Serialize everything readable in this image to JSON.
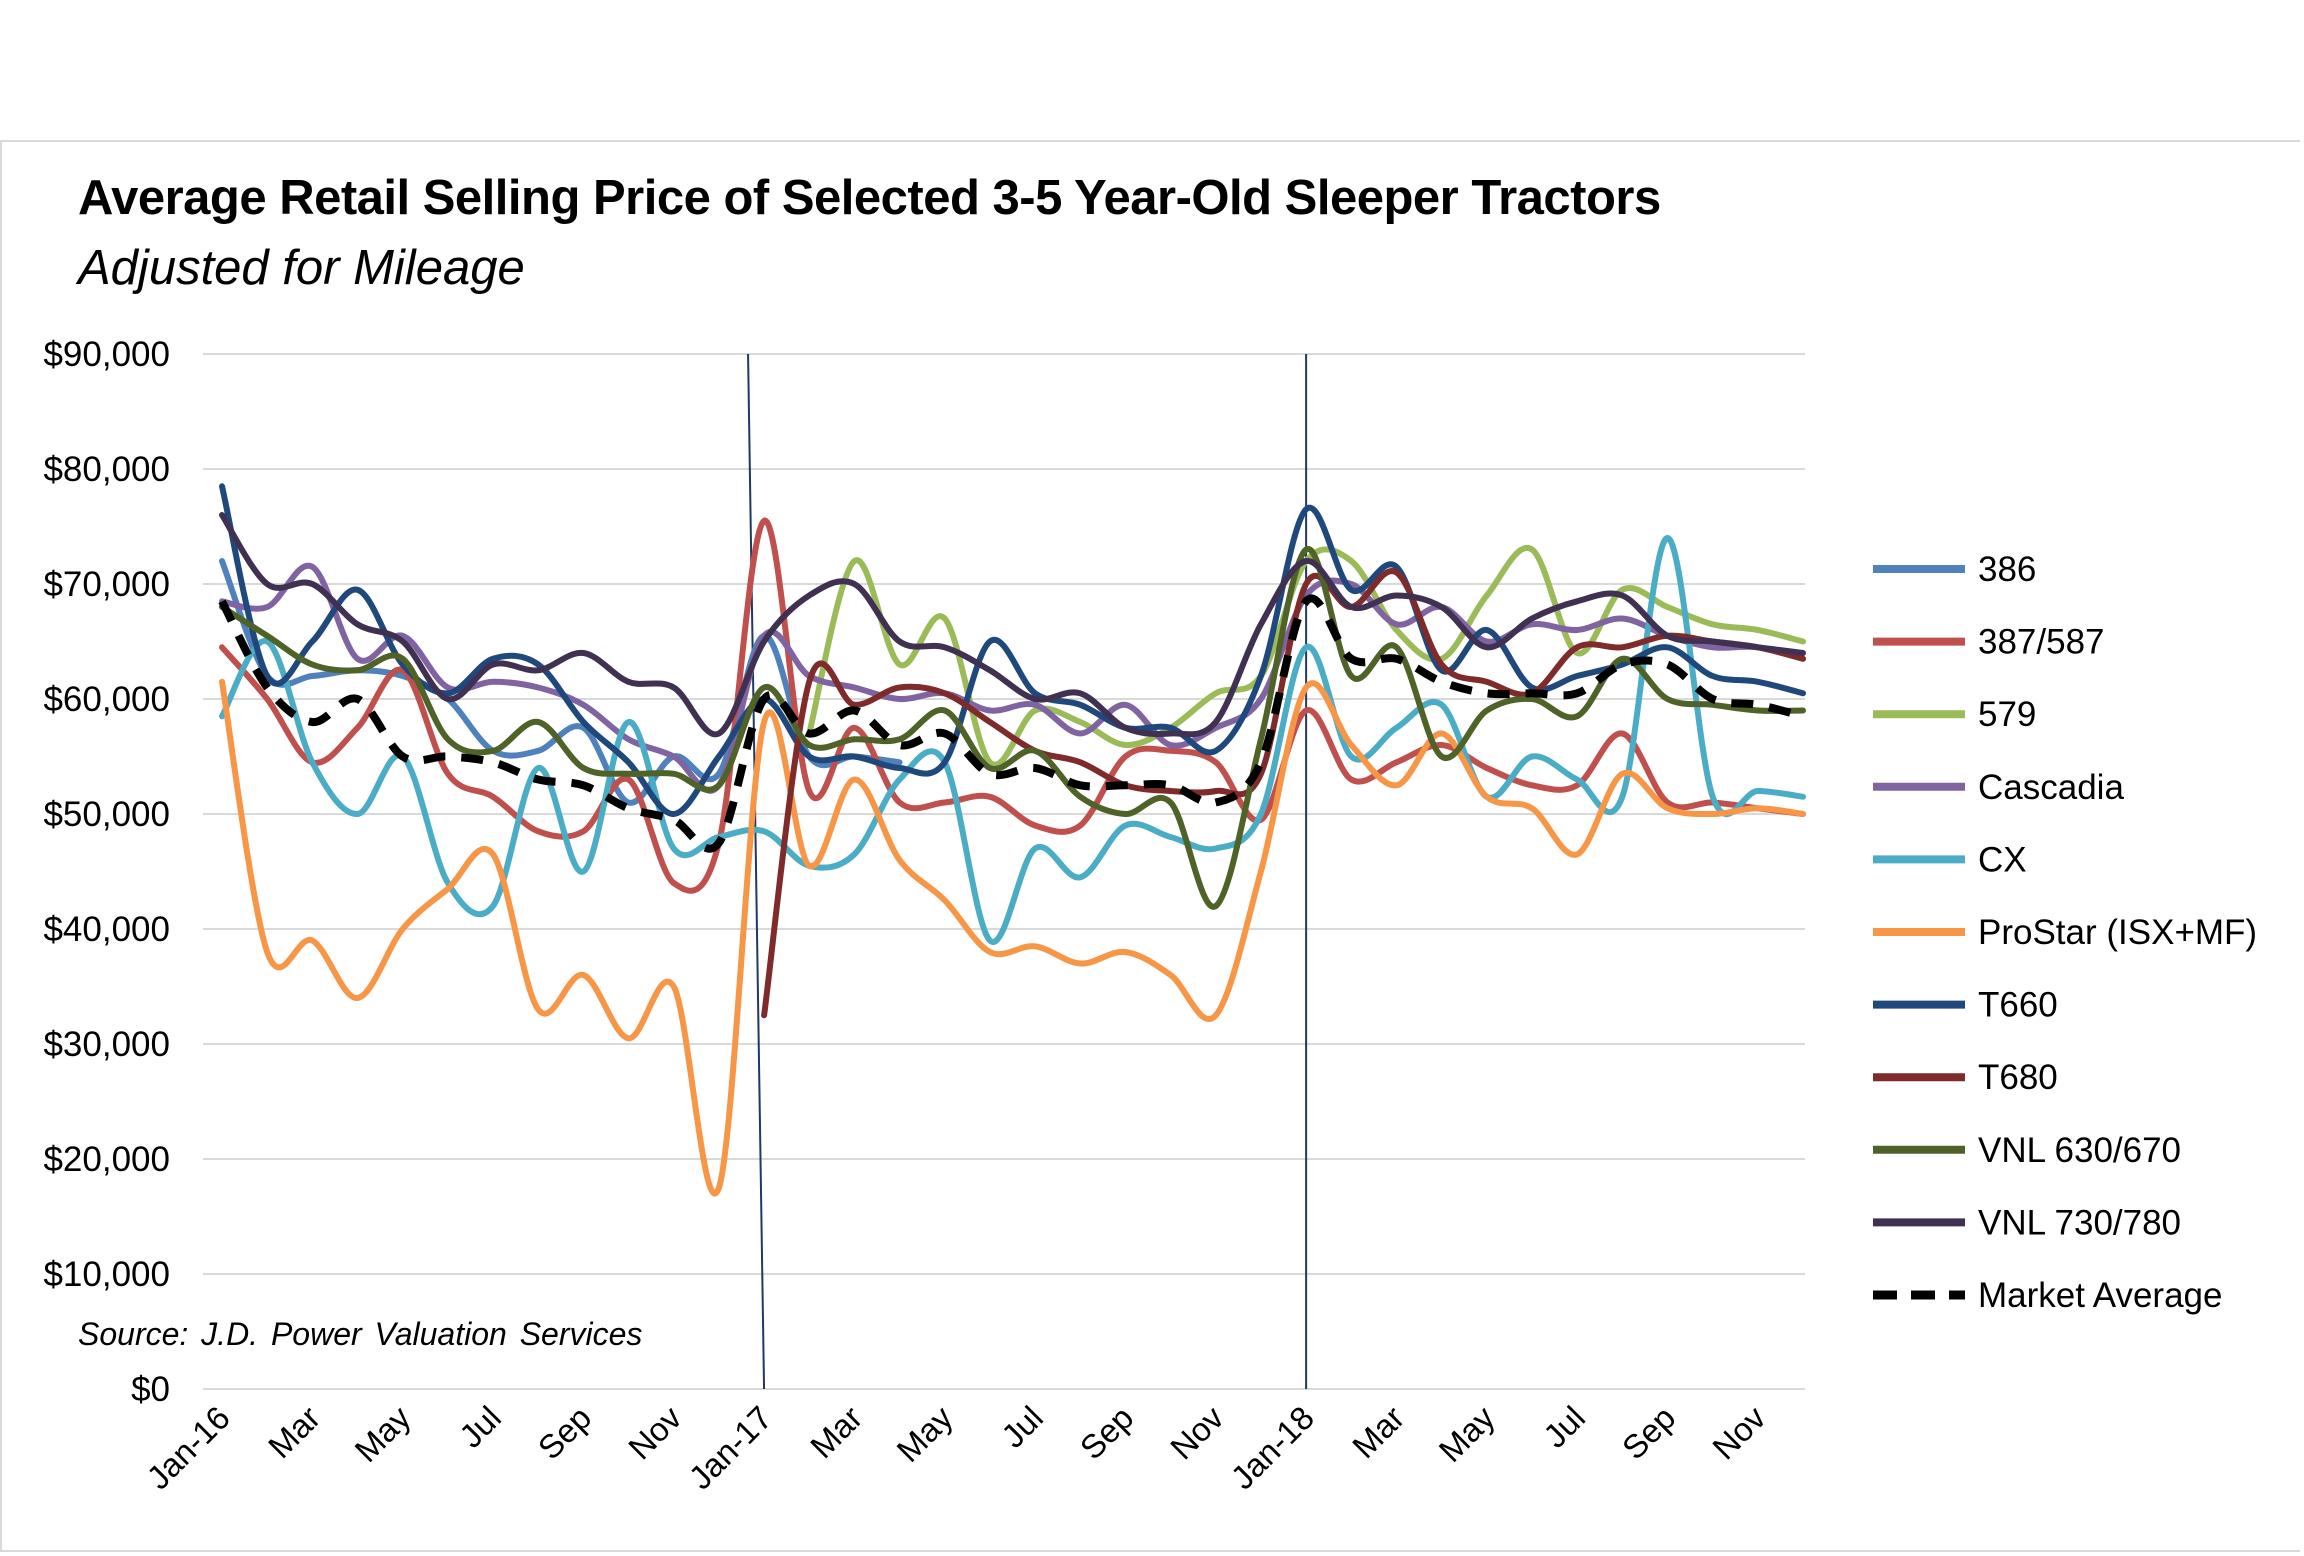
{
  "chart_data": {
    "type": "line",
    "title": "Average Retail Selling Price of Selected 3-5 Year-Old Sleeper Tractors",
    "subtitle": "Adjusted for Mileage",
    "source": "Source: J.D. Power Valuation Services",
    "ylim": [
      0,
      90000
    ],
    "ytick_labels": [
      "$0",
      "$10,000",
      "$20,000",
      "$30,000",
      "$40,000",
      "$50,000",
      "$60,000",
      "$70,000",
      "$80,000",
      "$90,000"
    ],
    "ytick_values": [
      0,
      10000,
      20000,
      30000,
      40000,
      50000,
      60000,
      70000,
      80000,
      90000
    ],
    "categories": [
      "Jan-16",
      "Feb-16",
      "Mar-16",
      "Apr-16",
      "May-16",
      "Jun-16",
      "Jul-16",
      "Aug-16",
      "Sep-16",
      "Oct-16",
      "Nov-16",
      "Dec-16",
      "Jan-17",
      "Feb-17",
      "Mar-17",
      "Apr-17",
      "May-17",
      "Jun-17",
      "Jul-17",
      "Aug-17",
      "Sep-17",
      "Oct-17",
      "Nov-17",
      "Dec-17",
      "Jan-18",
      "Feb-18",
      "Mar-18",
      "Apr-18",
      "May-18",
      "Jun-18",
      "Jul-18",
      "Aug-18",
      "Sep-18",
      "Oct-18",
      "Nov-18",
      "Dec-18"
    ],
    "xtick_labels": [
      "Jan-16",
      "Mar",
      "May",
      "Jul",
      "Sep",
      "Nov",
      "Jan-17",
      "Mar",
      "May",
      "Jul",
      "Sep",
      "Nov",
      "Jan-18",
      "Mar",
      "May",
      "Jul",
      "Sep",
      "Nov"
    ],
    "vertical_lines_at": [
      "Jan-17",
      "Jan-18"
    ],
    "grid": "horizontal",
    "legend_position": "right",
    "series": [
      {
        "name": "386",
        "color": "#4f81bd",
        "values": [
          72000,
          62000,
          62000,
          62500,
          62000,
          60000,
          55500,
          55500,
          57500,
          51000,
          55000,
          53500,
          65500,
          55000,
          55000,
          54500,
          null,
          null,
          null,
          null,
          null,
          null,
          null,
          null,
          null,
          null,
          null,
          null,
          null,
          null,
          null,
          null,
          null,
          null,
          null,
          null
        ]
      },
      {
        "name": "387/587",
        "color": "#c0504d",
        "values": [
          64500,
          60000,
          54500,
          57500,
          62500,
          53500,
          51500,
          48500,
          48500,
          53000,
          44000,
          47500,
          75500,
          52000,
          57500,
          51000,
          51000,
          51500,
          49000,
          49000,
          55000,
          55500,
          54500,
          49500,
          59000,
          53000,
          54500,
          56000,
          54000,
          52500,
          52500,
          57000,
          51000,
          51000,
          50500,
          50000
        ]
      },
      {
        "name": "579",
        "color": "#9bbb59",
        "values": [
          null,
          null,
          null,
          null,
          null,
          null,
          null,
          null,
          null,
          null,
          null,
          null,
          null,
          57000,
          72000,
          63000,
          67000,
          54500,
          59000,
          58000,
          56000,
          57500,
          60500,
          62000,
          72000,
          72000,
          66000,
          63500,
          69000,
          73000,
          64000,
          69500,
          68000,
          66500,
          66000,
          65000
        ]
      },
      {
        "name": "Cascadia",
        "color": "#8064a2",
        "values": [
          68500,
          68000,
          71500,
          63500,
          65500,
          61000,
          61500,
          61000,
          59500,
          56500,
          55000,
          52500,
          65500,
          62000,
          61000,
          60000,
          60500,
          59000,
          59500,
          57000,
          59500,
          56000,
          57500,
          60000,
          69000,
          70000,
          66500,
          68000,
          65000,
          66500,
          66000,
          67000,
          65500,
          64500,
          64500,
          63500
        ]
      },
      {
        "name": "CX",
        "color": "#4bacc6",
        "values": [
          58500,
          65000,
          54500,
          50000,
          55000,
          44000,
          42000,
          54000,
          45000,
          58000,
          47000,
          48000,
          48500,
          45500,
          46500,
          53000,
          54500,
          39000,
          47000,
          44500,
          49000,
          48000,
          47000,
          50000,
          64500,
          55000,
          57500,
          59500,
          51500,
          55000,
          53000,
          51500,
          74000,
          51500,
          52000,
          51500
        ]
      },
      {
        "name": "ProStar (ISX+MF)",
        "color": "#f79646",
        "values": [
          61500,
          38000,
          39000,
          34000,
          40000,
          43500,
          46500,
          33000,
          36000,
          30500,
          35000,
          17500,
          58000,
          45500,
          53000,
          46000,
          42500,
          38000,
          38500,
          37000,
          38000,
          36000,
          32500,
          45000,
          61000,
          56000,
          52500,
          57000,
          51500,
          50500,
          46500,
          53500,
          50500,
          50000,
          50500,
          50000
        ]
      },
      {
        "name": "T660",
        "color": "#1f497d",
        "values": [
          78500,
          62000,
          65000,
          69500,
          63000,
          60500,
          63500,
          63000,
          58000,
          54500,
          50000,
          55000,
          60000,
          55000,
          55000,
          54000,
          54500,
          65000,
          60500,
          59500,
          57500,
          57500,
          55500,
          62000,
          76500,
          69500,
          71500,
          62500,
          66000,
          61000,
          62000,
          63000,
          64500,
          62000,
          61500,
          60500
        ]
      },
      {
        "name": "T680",
        "color": "#7f2b2b",
        "values": [
          null,
          null,
          null,
          null,
          null,
          null,
          null,
          null,
          null,
          null,
          null,
          null,
          32500,
          61500,
          59500,
          61000,
          60500,
          58000,
          55500,
          54500,
          52500,
          52000,
          52000,
          53500,
          70000,
          68000,
          71000,
          63000,
          61500,
          60500,
          64500,
          64500,
          65500,
          65000,
          64500,
          63500
        ]
      },
      {
        "name": "VNL 630/670",
        "color": "#4f6228",
        "values": [
          68000,
          65500,
          63000,
          62500,
          63500,
          56500,
          55500,
          58000,
          54000,
          53500,
          53500,
          52500,
          61000,
          56000,
          56500,
          56500,
          59000,
          54000,
          55500,
          51500,
          50000,
          51000,
          42000,
          56500,
          73000,
          62000,
          64500,
          55000,
          59000,
          60000,
          58500,
          63500,
          60000,
          59500,
          59000,
          59000
        ]
      },
      {
        "name": "VNL 730/780",
        "color": "#403152",
        "values": [
          76000,
          70000,
          70000,
          66500,
          65000,
          60000,
          63000,
          62500,
          64000,
          61500,
          61000,
          57000,
          65000,
          69000,
          70000,
          65000,
          64500,
          62500,
          60000,
          60500,
          57500,
          57000,
          58000,
          66500,
          72000,
          68000,
          69000,
          68000,
          64500,
          67000,
          68500,
          69000,
          65500,
          65000,
          64500,
          64000
        ]
      },
      {
        "name": "Market Average",
        "color": "#000000",
        "dashed": true,
        "values": [
          68500,
          61000,
          58000,
          60000,
          55000,
          55000,
          54500,
          53000,
          52500,
          50500,
          49500,
          47500,
          60000,
          57000,
          59000,
          56000,
          57000,
          53500,
          54000,
          52500,
          52500,
          52500,
          51000,
          54500,
          68500,
          63500,
          63500,
          61500,
          60500,
          60500,
          60500,
          63000,
          63000,
          60000,
          59500,
          58500
        ]
      }
    ]
  }
}
